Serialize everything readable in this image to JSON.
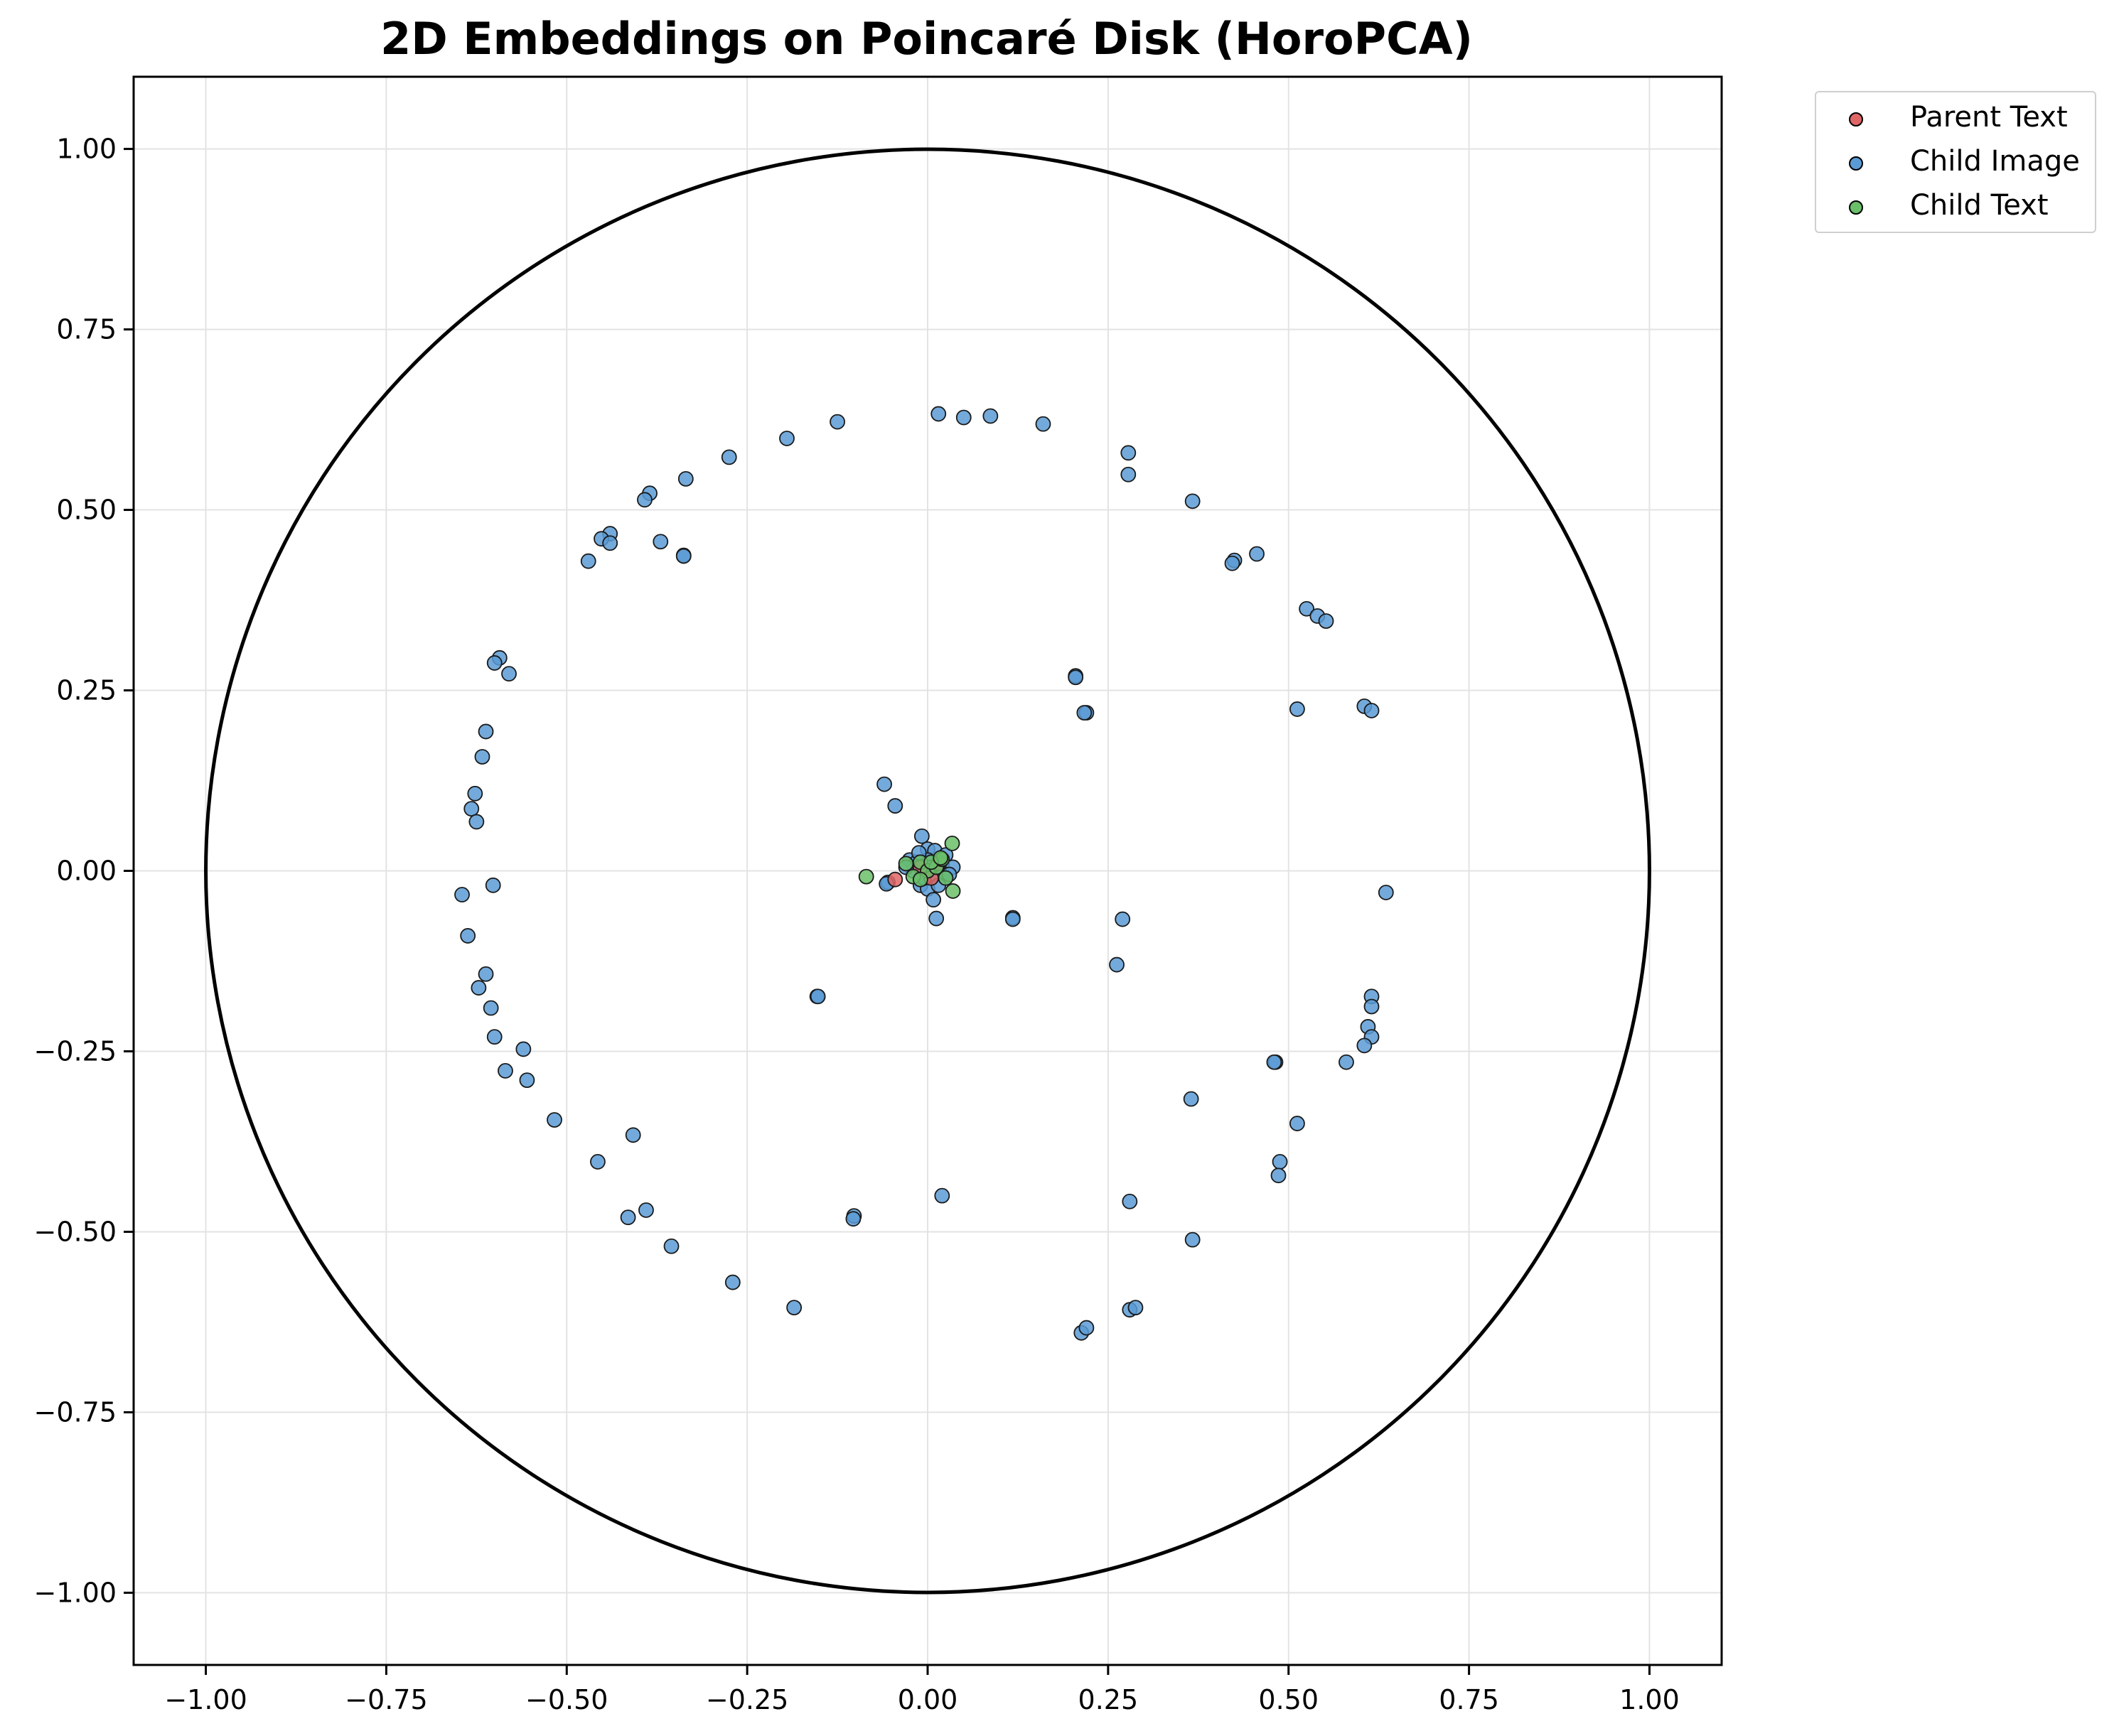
{
  "chart_data": {
    "type": "scatter",
    "title": "2D Embeddings on Poincaré Disk (HoroPCA)",
    "xlabel": "",
    "ylabel": "",
    "xlim": [
      -1.1,
      1.1
    ],
    "ylim": [
      -1.1,
      1.1
    ],
    "xticks": [
      "−1.00",
      "−0.75",
      "−0.50",
      "−0.25",
      "0.00",
      "0.25",
      "0.50",
      "0.75",
      "1.00"
    ],
    "yticks": [
      "1.00",
      "0.75",
      "0.50",
      "0.25",
      "0.00",
      "−0.25",
      "−0.50",
      "−0.75",
      "−1.00"
    ],
    "grid": true,
    "legend_position": "outside-top-right",
    "unit_circle": true,
    "series": [
      {
        "name": "Parent Text",
        "color": "#e06666",
        "points": [
          [
            -0.045,
            -0.012
          ],
          [
            -0.01,
            0.005
          ],
          [
            0.005,
            -0.01
          ],
          [
            0.015,
            0.01
          ]
        ]
      },
      {
        "name": "Child Image",
        "color": "#5a9bd5",
        "points": [
          [
            0.015,
            0.633
          ],
          [
            0.05,
            0.628
          ],
          [
            0.087,
            0.63
          ],
          [
            0.16,
            0.619
          ],
          [
            0.278,
            0.579
          ],
          [
            0.278,
            0.549
          ],
          [
            -0.125,
            0.622
          ],
          [
            -0.195,
            0.599
          ],
          [
            -0.275,
            0.573
          ],
          [
            -0.335,
            0.543
          ],
          [
            -0.385,
            0.523
          ],
          [
            -0.392,
            0.514
          ],
          [
            0.367,
            0.512
          ],
          [
            0.456,
            0.439
          ],
          [
            0.425,
            0.43
          ],
          [
            0.422,
            0.426
          ],
          [
            -0.44,
            0.467
          ],
          [
            -0.452,
            0.46
          ],
          [
            -0.44,
            0.454
          ],
          [
            -0.37,
            0.456
          ],
          [
            -0.47,
            0.429
          ],
          [
            -0.338,
            0.437
          ],
          [
            -0.338,
            0.436
          ],
          [
            0.525,
            0.363
          ],
          [
            0.54,
            0.353
          ],
          [
            0.552,
            0.346
          ],
          [
            0.205,
            0.27
          ],
          [
            0.205,
            0.268
          ],
          [
            0.22,
            0.219
          ],
          [
            0.217,
            0.219
          ],
          [
            0.605,
            0.228
          ],
          [
            0.615,
            0.222
          ],
          [
            0.512,
            0.224
          ],
          [
            -0.593,
            0.295
          ],
          [
            -0.6,
            0.288
          ],
          [
            -0.58,
            0.273
          ],
          [
            -0.612,
            0.193
          ],
          [
            -0.617,
            0.158
          ],
          [
            -0.627,
            0.107
          ],
          [
            -0.632,
            0.086
          ],
          [
            -0.625,
            0.068
          ],
          [
            -0.645,
            -0.033
          ],
          [
            -0.602,
            -0.02
          ],
          [
            -0.637,
            -0.09
          ],
          [
            -0.612,
            -0.143
          ],
          [
            -0.622,
            -0.162
          ],
          [
            -0.605,
            -0.19
          ],
          [
            -0.6,
            -0.23
          ],
          [
            -0.56,
            -0.247
          ],
          [
            -0.585,
            -0.277
          ],
          [
            -0.555,
            -0.29
          ],
          [
            -0.517,
            -0.345
          ],
          [
            0.635,
            -0.03
          ],
          [
            0.27,
            -0.067
          ],
          [
            0.262,
            -0.13
          ],
          [
            0.118,
            -0.065
          ],
          [
            0.118,
            -0.067
          ],
          [
            0.012,
            -0.066
          ],
          [
            0.615,
            -0.174
          ],
          [
            0.615,
            -0.188
          ],
          [
            0.61,
            -0.216
          ],
          [
            0.615,
            -0.23
          ],
          [
            0.605,
            -0.242
          ],
          [
            0.58,
            -0.265
          ],
          [
            0.482,
            -0.265
          ],
          [
            0.48,
            -0.265
          ],
          [
            0.365,
            -0.316
          ],
          [
            0.512,
            -0.35
          ],
          [
            0.488,
            -0.403
          ],
          [
            0.486,
            -0.422
          ],
          [
            0.28,
            -0.458
          ],
          [
            0.367,
            -0.511
          ],
          [
            -0.153,
            -0.174
          ],
          [
            -0.152,
            -0.174
          ],
          [
            -0.408,
            -0.366
          ],
          [
            -0.457,
            -0.403
          ],
          [
            -0.39,
            -0.47
          ],
          [
            -0.415,
            -0.48
          ],
          [
            -0.355,
            -0.52
          ],
          [
            -0.102,
            -0.478
          ],
          [
            -0.103,
            -0.482
          ],
          [
            0.02,
            -0.45
          ],
          [
            -0.27,
            -0.57
          ],
          [
            -0.185,
            -0.605
          ],
          [
            0.213,
            -0.64
          ],
          [
            0.22,
            -0.633
          ],
          [
            0.28,
            -0.608
          ],
          [
            0.288,
            -0.605
          ],
          [
            -0.06,
            0.12
          ],
          [
            -0.045,
            0.09
          ],
          [
            -0.055,
            -0.016
          ],
          [
            -0.057,
            -0.018
          ],
          [
            -0.008,
            0.048
          ],
          [
            0.0,
            0.03
          ],
          [
            0.01,
            0.028
          ],
          [
            0.025,
            0.022
          ],
          [
            -0.025,
            0.015
          ],
          [
            -0.015,
            0.012
          ],
          [
            0.0,
            0.015
          ],
          [
            0.02,
            0.01
          ],
          [
            0.035,
            0.005
          ],
          [
            -0.02,
            0.0
          ],
          [
            -0.03,
            0.005
          ],
          [
            0.01,
            -0.005
          ],
          [
            0.025,
            -0.01
          ],
          [
            -0.01,
            -0.02
          ],
          [
            0.0,
            -0.025
          ],
          [
            0.015,
            -0.02
          ],
          [
            0.008,
            -0.04
          ],
          [
            -0.005,
            -0.01
          ],
          [
            0.005,
            0.005
          ],
          [
            0.03,
            -0.005
          ],
          [
            -0.012,
            0.025
          ]
        ]
      },
      {
        "name": "Child Text",
        "color": "#6abf69",
        "points": [
          [
            -0.085,
            -0.008
          ],
          [
            -0.02,
            -0.008
          ],
          [
            -0.03,
            0.01
          ],
          [
            -0.01,
            0.012
          ],
          [
            0.0,
            0.0
          ],
          [
            0.012,
            0.005
          ],
          [
            0.02,
            0.016
          ],
          [
            0.034,
            0.038
          ],
          [
            0.035,
            -0.028
          ],
          [
            0.025,
            -0.01
          ],
          [
            -0.01,
            -0.012
          ],
          [
            0.005,
            0.012
          ],
          [
            0.018,
            0.018
          ]
        ]
      }
    ]
  }
}
